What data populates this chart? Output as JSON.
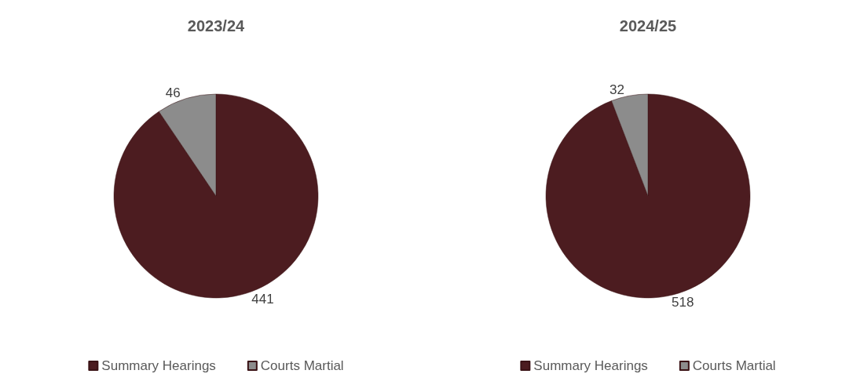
{
  "chart_data": [
    {
      "type": "pie",
      "title": "2023/24",
      "categories": [
        "Summary Hearings",
        "Courts Martial"
      ],
      "values": [
        441,
        46
      ],
      "colors": [
        "#4c1c20",
        "#8c8c8c"
      ],
      "data_labels": true,
      "legend": "bottom"
    },
    {
      "type": "pie",
      "title": "2024/25",
      "categories": [
        "Summary Hearings",
        "Courts Martial"
      ],
      "values": [
        518,
        32
      ],
      "colors": [
        "#4c1c20",
        "#8c8c8c"
      ],
      "data_labels": true,
      "legend": "bottom"
    }
  ]
}
